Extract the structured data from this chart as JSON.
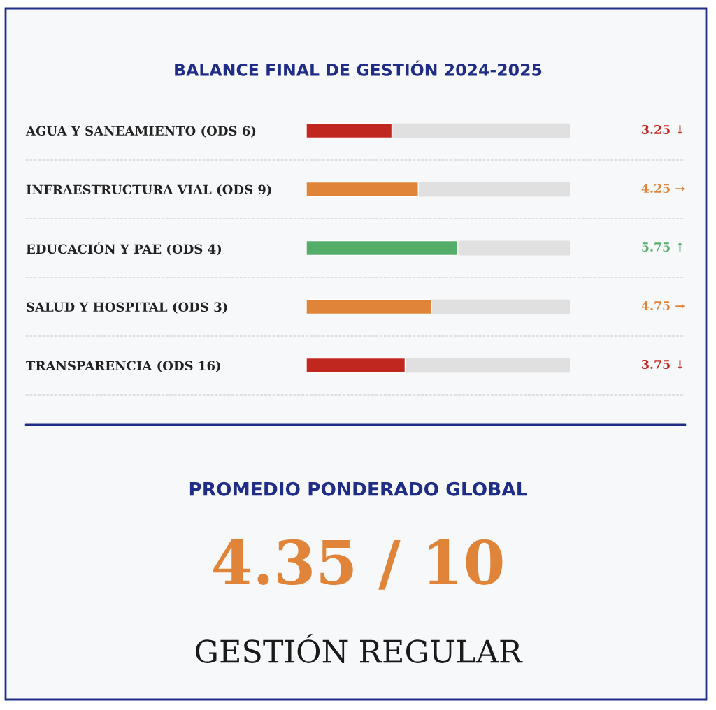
{
  "chart_data": {
    "type": "bar",
    "orientation": "horizontal",
    "title": "BALANCE FINAL DE GESTIÓN 2024-2025",
    "categories": [
      "AGUA Y SANEAMIENTO (ODS 6)",
      "INFRAESTRUCTURA VIAL (ODS 9)",
      "EDUCACIÓN Y PAE (ODS 4)",
      "SALUD Y HOSPITAL (ODS 3)",
      "TRANSPARENCIA (ODS 16)"
    ],
    "values": [
      3.25,
      4.25,
      5.75,
      4.75,
      3.75
    ],
    "colors": [
      "#c0281f",
      "#e0843a",
      "#55ad6a",
      "#e0843a",
      "#c0281f"
    ],
    "value_labels": [
      "3.25 ↓",
      "4.25 →",
      "5.75 ↑",
      "4.75 →",
      "3.75 ↓"
    ],
    "xlim": [
      0,
      10
    ],
    "tick_labels": "y",
    "annotations": [
      "PROMEDIO PONDERADO GLOBAL",
      "4.35 / 10",
      "GESTIÓN REGULAR"
    ]
  }
}
